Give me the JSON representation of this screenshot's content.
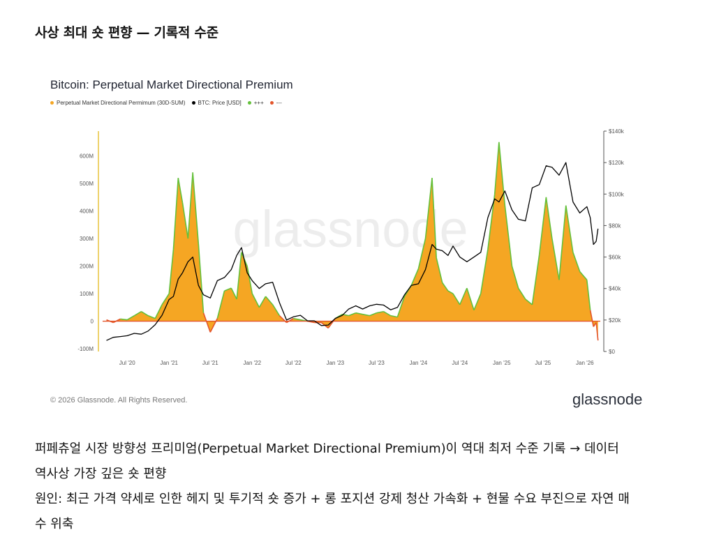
{
  "heading": "사상 최대 숏 편향 — 기록적 수준",
  "colors": {
    "premium_fill": "#f5a623",
    "positive_line": "#64c03b",
    "negative_line": "#e3542a",
    "price_line": "#000000",
    "axis_left": "#e8c33a"
  },
  "chart_data": {
    "type": "area",
    "title": "Bitcoin: Perpetual Market Directional Premium",
    "legend": [
      "Perpetual Market Directional Permimum (30D-SUM)",
      "BTC: Price [USD]",
      "+++",
      "---"
    ],
    "legend_colors": [
      "#f5a623",
      "#000000",
      "#64c03b",
      "#e3542a"
    ],
    "x_ticks": [
      "Jul '20",
      "Jan '21",
      "Jul '21",
      "Jan '22",
      "Jul '22",
      "Jan '23",
      "Jul '23",
      "Jan '24",
      "Jul '24",
      "Jan '25",
      "Jul '25",
      "Jan '26"
    ],
    "y_left_ticks": [
      "-100M",
      "0",
      "100M",
      "200M",
      "300M",
      "400M",
      "500M",
      "600M"
    ],
    "y_right_ticks": [
      "$0",
      "$20k",
      "$40k",
      "$60k",
      "$80k",
      "$100k",
      "$120k",
      "$140k"
    ],
    "ylim_left_millions": [
      -110,
      690
    ],
    "ylim_right_usd": [
      0,
      140000
    ],
    "premium_millions": {
      "x": [
        "2020-04-01",
        "2020-05-01",
        "2020-06-01",
        "2020-07-01",
        "2020-08-01",
        "2020-09-01",
        "2020-10-01",
        "2020-11-01",
        "2020-12-01",
        "2021-01-01",
        "2021-01-20",
        "2021-02-10",
        "2021-03-01",
        "2021-03-25",
        "2021-04-15",
        "2021-05-10",
        "2021-06-01",
        "2021-07-01",
        "2021-08-01",
        "2021-09-01",
        "2021-10-01",
        "2021-10-25",
        "2021-11-15",
        "2021-12-10",
        "2022-01-01",
        "2022-02-01",
        "2022-03-01",
        "2022-04-01",
        "2022-05-01",
        "2022-06-01",
        "2022-07-01",
        "2022-08-01",
        "2022-09-01",
        "2022-10-01",
        "2022-11-01",
        "2022-12-01",
        "2023-01-01",
        "2023-02-01",
        "2023-03-01",
        "2023-04-01",
        "2023-05-01",
        "2023-06-01",
        "2023-07-01",
        "2023-08-01",
        "2023-09-01",
        "2023-10-01",
        "2023-11-01",
        "2023-12-01",
        "2024-01-01",
        "2024-02-01",
        "2024-03-01",
        "2024-03-20",
        "2024-04-15",
        "2024-05-10",
        "2024-06-01",
        "2024-07-01",
        "2024-08-01",
        "2024-09-01",
        "2024-10-01",
        "2024-11-01",
        "2024-12-01",
        "2024-12-20",
        "2025-01-15",
        "2025-02-15",
        "2025-03-15",
        "2025-04-15",
        "2025-05-15",
        "2025-06-15",
        "2025-07-15",
        "2025-08-10",
        "2025-09-10",
        "2025-10-10",
        "2025-11-10",
        "2025-12-10",
        "2026-01-10",
        "2026-01-25",
        "2026-02-08",
        "2026-02-20",
        "2026-02-28"
      ],
      "y": [
        5,
        -5,
        8,
        5,
        20,
        35,
        20,
        10,
        60,
        100,
        260,
        520,
        430,
        300,
        540,
        280,
        30,
        -40,
        10,
        110,
        120,
        80,
        250,
        200,
        100,
        50,
        90,
        60,
        20,
        -5,
        10,
        5,
        0,
        -5,
        -5,
        -25,
        10,
        25,
        20,
        30,
        25,
        20,
        30,
        35,
        20,
        15,
        90,
        130,
        190,
        300,
        520,
        230,
        140,
        110,
        100,
        60,
        120,
        40,
        100,
        260,
        460,
        650,
        420,
        200,
        120,
        80,
        60,
        240,
        450,
        300,
        150,
        420,
        250,
        180,
        150,
        40,
        -20,
        -5,
        -70
      ]
    },
    "btc_price_usd": {
      "x": [
        "2020-04-01",
        "2020-05-01",
        "2020-06-01",
        "2020-07-01",
        "2020-08-01",
        "2020-09-01",
        "2020-10-01",
        "2020-11-01",
        "2020-12-01",
        "2021-01-01",
        "2021-01-20",
        "2021-02-10",
        "2021-03-01",
        "2021-03-25",
        "2021-04-15",
        "2021-05-10",
        "2021-06-01",
        "2021-07-01",
        "2021-08-01",
        "2021-09-01",
        "2021-10-01",
        "2021-10-25",
        "2021-11-15",
        "2021-12-10",
        "2022-01-01",
        "2022-02-01",
        "2022-03-01",
        "2022-04-01",
        "2022-05-01",
        "2022-06-01",
        "2022-07-01",
        "2022-08-01",
        "2022-09-01",
        "2022-10-01",
        "2022-11-01",
        "2022-12-01",
        "2023-01-01",
        "2023-02-01",
        "2023-03-01",
        "2023-04-01",
        "2023-05-01",
        "2023-06-01",
        "2023-07-01",
        "2023-08-01",
        "2023-09-01",
        "2023-10-01",
        "2023-11-01",
        "2023-12-01",
        "2024-01-01",
        "2024-02-01",
        "2024-03-01",
        "2024-03-20",
        "2024-04-15",
        "2024-05-10",
        "2024-06-01",
        "2024-07-01",
        "2024-08-01",
        "2024-09-01",
        "2024-10-01",
        "2024-11-01",
        "2024-12-01",
        "2024-12-20",
        "2025-01-15",
        "2025-02-15",
        "2025-03-15",
        "2025-04-15",
        "2025-05-15",
        "2025-06-15",
        "2025-07-15",
        "2025-08-10",
        "2025-09-10",
        "2025-10-10",
        "2025-11-10",
        "2025-12-10",
        "2026-01-10",
        "2026-01-25",
        "2026-02-08",
        "2026-02-20",
        "2026-02-28"
      ],
      "y": [
        7000,
        9000,
        9500,
        10000,
        11500,
        11000,
        13000,
        17000,
        23000,
        33000,
        35000,
        46000,
        50000,
        57000,
        60000,
        42000,
        36000,
        34000,
        45000,
        47000,
        52000,
        61000,
        66000,
        50000,
        45000,
        40000,
        43000,
        44000,
        31000,
        20000,
        22000,
        23000,
        19500,
        19500,
        16500,
        16800,
        21000,
        23000,
        27000,
        29000,
        27000,
        29000,
        30000,
        29500,
        26500,
        28000,
        36000,
        42000,
        43000,
        52000,
        68000,
        65000,
        64000,
        61000,
        67000,
        60000,
        57000,
        60000,
        63000,
        85000,
        97000,
        95000,
        102000,
        90000,
        84000,
        83000,
        104000,
        106000,
        118000,
        117000,
        112000,
        120000,
        95000,
        88000,
        92000,
        85000,
        68000,
        70000,
        78000
      ]
    }
  },
  "copyright": "© 2026 Glassnode. All Rights Reserved.",
  "brand": "glassnode",
  "watermark": "glassnode",
  "paragraphs": [
    "퍼페츄얼 시장 방향성 프리미엄(Perpetual Market Directional Premium)이 역대 최저 수준 기록 → 데이터",
    "역사상 가장 깊은 숏 편향",
    "원인: 최근 가격 약세로 인한 헤지 및 투기적 숏 증가 + 롱 포지션 강제 청산 가속화 + 현물 수요 부진으로 자연 매",
    "수 위축"
  ]
}
